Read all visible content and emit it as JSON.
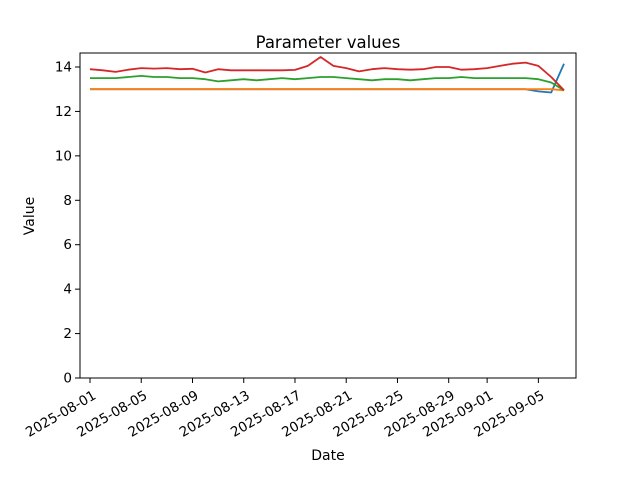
{
  "title": "Parameter values",
  "chart_data": {
    "type": "line",
    "title": "Parameter values",
    "xlabel": "Date",
    "ylabel": "Value",
    "background": "#ffffff",
    "grid": false,
    "legend": "none",
    "tick_rotation_deg": 30,
    "ylim": [
      0,
      14.63
    ],
    "yticks": [
      0,
      2,
      4,
      6,
      8,
      10,
      12,
      14
    ],
    "xticks": [
      {
        "day_index": 0,
        "label": "2025-08-01"
      },
      {
        "day_index": 4,
        "label": "2025-08-05"
      },
      {
        "day_index": 8,
        "label": "2025-08-09"
      },
      {
        "day_index": 12,
        "label": "2025-08-13"
      },
      {
        "day_index": 16,
        "label": "2025-08-17"
      },
      {
        "day_index": 20,
        "label": "2025-08-21"
      },
      {
        "day_index": 24,
        "label": "2025-08-25"
      },
      {
        "day_index": 28,
        "label": "2025-08-29"
      },
      {
        "day_index": 31,
        "label": "2025-09-01"
      },
      {
        "day_index": 35,
        "label": "2025-09-05"
      }
    ],
    "x_dates": [
      "2025-08-01",
      "2025-08-02",
      "2025-08-03",
      "2025-08-04",
      "2025-08-05",
      "2025-08-06",
      "2025-08-07",
      "2025-08-08",
      "2025-08-09",
      "2025-08-10",
      "2025-08-11",
      "2025-08-12",
      "2025-08-13",
      "2025-08-14",
      "2025-08-15",
      "2025-08-16",
      "2025-08-17",
      "2025-08-18",
      "2025-08-19",
      "2025-08-20",
      "2025-08-21",
      "2025-08-22",
      "2025-08-23",
      "2025-08-24",
      "2025-08-25",
      "2025-08-26",
      "2025-08-27",
      "2025-08-28",
      "2025-08-29",
      "2025-08-30",
      "2025-08-31",
      "2025-09-01",
      "2025-09-02",
      "2025-09-03",
      "2025-09-04",
      "2025-09-05",
      "2025-09-06",
      "2025-09-07"
    ],
    "series": [
      {
        "color": "#1f77b4",
        "values": [
          13.0,
          13.0,
          13.0,
          13.0,
          13.0,
          13.0,
          13.0,
          13.0,
          13.0,
          13.0,
          13.0,
          13.0,
          13.0,
          13.0,
          13.0,
          13.0,
          13.0,
          13.0,
          13.0,
          13.0,
          13.0,
          13.0,
          13.0,
          13.0,
          13.0,
          13.0,
          13.0,
          13.0,
          13.0,
          13.0,
          13.0,
          13.0,
          13.0,
          13.0,
          13.0,
          12.9,
          12.85,
          14.15
        ]
      },
      {
        "color": "#ff7f0e",
        "values": [
          13.0,
          13.0,
          13.0,
          13.0,
          13.0,
          13.0,
          13.0,
          13.0,
          13.0,
          13.0,
          13.0,
          13.0,
          13.0,
          13.0,
          13.0,
          13.0,
          13.0,
          13.0,
          13.0,
          13.0,
          13.0,
          13.0,
          13.0,
          13.0,
          13.0,
          13.0,
          13.0,
          13.0,
          13.0,
          13.0,
          13.0,
          13.0,
          13.0,
          13.0,
          13.0,
          13.0,
          13.0,
          12.95
        ]
      },
      {
        "color": "#2ca02c",
        "values": [
          13.5,
          13.5,
          13.5,
          13.55,
          13.6,
          13.55,
          13.55,
          13.5,
          13.5,
          13.45,
          13.35,
          13.4,
          13.45,
          13.4,
          13.45,
          13.5,
          13.45,
          13.5,
          13.55,
          13.55,
          13.5,
          13.45,
          13.4,
          13.45,
          13.45,
          13.4,
          13.45,
          13.5,
          13.5,
          13.55,
          13.5,
          13.5,
          13.5,
          13.5,
          13.5,
          13.45,
          13.3,
          12.95
        ]
      },
      {
        "color": "#d62728",
        "values": [
          13.9,
          13.85,
          13.78,
          13.88,
          13.95,
          13.93,
          13.95,
          13.9,
          13.92,
          13.75,
          13.9,
          13.85,
          13.85,
          13.85,
          13.85,
          13.85,
          13.87,
          14.05,
          14.45,
          14.05,
          13.95,
          13.8,
          13.9,
          13.95,
          13.9,
          13.88,
          13.9,
          14.0,
          14.0,
          13.88,
          13.9,
          13.95,
          14.05,
          14.15,
          14.2,
          14.05,
          13.55,
          12.95
        ]
      }
    ]
  }
}
